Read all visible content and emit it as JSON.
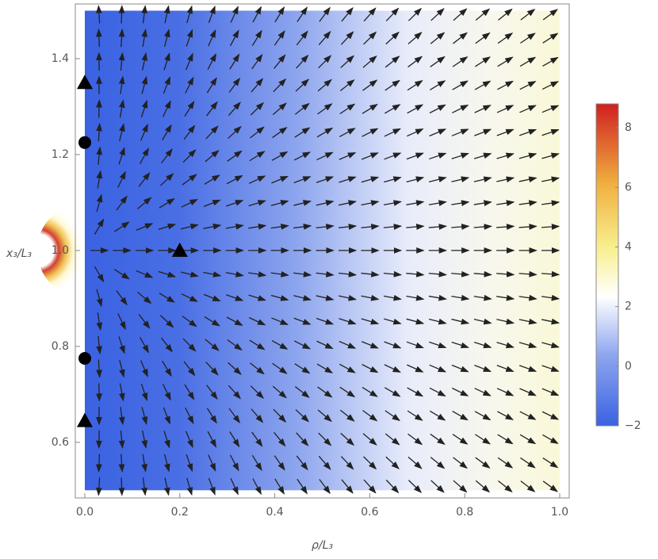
{
  "chart_data": {
    "type": "vector-density",
    "xlabel": "ρ/L₃",
    "ylabel": "x₃/L₃",
    "xlim": [
      -0.02,
      1.02
    ],
    "ylim": [
      0.484,
      1.514
    ],
    "xticks": [
      {
        "value": 0,
        "label": "0.0"
      },
      0.2,
      0.4,
      0.6,
      0.8,
      {
        "value": 1,
        "label": "1.0"
      }
    ],
    "yticks": [
      0.6,
      0.8,
      {
        "value": 1,
        "label": "1.0"
      },
      1.2,
      1.4
    ],
    "series": [
      {
        "marker": "triangle",
        "color": "#000000",
        "x": [
          0,
          0,
          0.2
        ],
        "y": [
          1.35,
          0.645,
          1.0
        ]
      },
      {
        "marker": "circle",
        "color": "#000000",
        "x": [
          0,
          0
        ],
        "y": [
          1.225,
          0.775
        ]
      }
    ],
    "colorbar": {
      "lim": [
        -2,
        8.8
      ],
      "ticks": [
        {
          "value": -2,
          "label": "−2"
        },
        0,
        2,
        4,
        6,
        8
      ]
    }
  }
}
